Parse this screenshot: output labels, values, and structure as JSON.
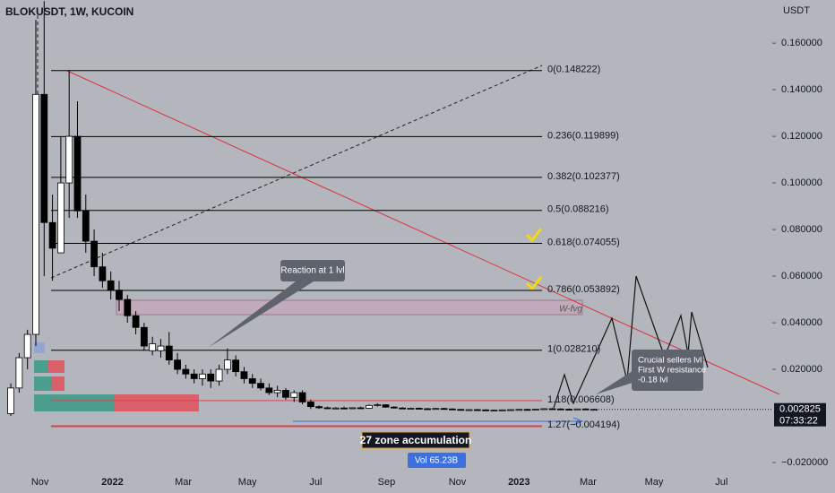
{
  "header": {
    "symbol": "BLOKUSDT, 1W, KUCOIN",
    "currency": "USDT"
  },
  "chart_data": {
    "type": "candlestick",
    "ohlc": [
      [
        0.001,
        0.014,
        0.0,
        0.012
      ],
      [
        0.012,
        0.027,
        0.01,
        0.025
      ],
      [
        0.025,
        0.037,
        0.02,
        0.035
      ],
      [
        0.035,
        0.17,
        0.03,
        0.138
      ],
      [
        0.138,
        0.178,
        0.06,
        0.083
      ],
      [
        0.083,
        0.095,
        0.058,
        0.072
      ],
      [
        0.07,
        0.12,
        0.07,
        0.1
      ],
      [
        0.1,
        0.148,
        0.085,
        0.12
      ],
      [
        0.12,
        0.135,
        0.085,
        0.088
      ],
      [
        0.088,
        0.095,
        0.07,
        0.075
      ],
      [
        0.075,
        0.08,
        0.06,
        0.064
      ],
      [
        0.064,
        0.07,
        0.055,
        0.058
      ],
      [
        0.058,
        0.062,
        0.05,
        0.054
      ],
      [
        0.054,
        0.058,
        0.045,
        0.05
      ],
      [
        0.05,
        0.052,
        0.04,
        0.043
      ],
      [
        0.043,
        0.045,
        0.035,
        0.038
      ],
      [
        0.038,
        0.04,
        0.028,
        0.03
      ],
      [
        0.028,
        0.034,
        0.026,
        0.031
      ],
      [
        0.028,
        0.033,
        0.025,
        0.03
      ],
      [
        0.03,
        0.036,
        0.022,
        0.024
      ],
      [
        0.024,
        0.027,
        0.018,
        0.02
      ],
      [
        0.02,
        0.022,
        0.016,
        0.018
      ],
      [
        0.018,
        0.02,
        0.014,
        0.016
      ],
      [
        0.016,
        0.02,
        0.013,
        0.018
      ],
      [
        0.018,
        0.02,
        0.012,
        0.015
      ],
      [
        0.015,
        0.022,
        0.013,
        0.02
      ],
      [
        0.02,
        0.029,
        0.018,
        0.024
      ],
      [
        0.024,
        0.026,
        0.017,
        0.019
      ],
      [
        0.019,
        0.021,
        0.014,
        0.016
      ],
      [
        0.016,
        0.018,
        0.012,
        0.014
      ],
      [
        0.014,
        0.016,
        0.011,
        0.012
      ],
      [
        0.012,
        0.014,
        0.009,
        0.01
      ],
      [
        0.01,
        0.013,
        0.008,
        0.011
      ],
      [
        0.011,
        0.012,
        0.007,
        0.008
      ],
      [
        0.008,
        0.011,
        0.006,
        0.01
      ],
      [
        0.01,
        0.011,
        0.005,
        0.006
      ],
      [
        0.006,
        0.007,
        0.003,
        0.004
      ],
      [
        0.004,
        0.0045,
        0.003,
        0.0035
      ],
      [
        0.0035,
        0.004,
        0.003,
        0.0033
      ],
      [
        0.0033,
        0.0038,
        0.003,
        0.0034
      ],
      [
        0.0034,
        0.004,
        0.003,
        0.0032
      ],
      [
        0.0032,
        0.0037,
        0.0029,
        0.0035
      ],
      [
        0.0035,
        0.004,
        0.003,
        0.0033
      ],
      [
        0.0033,
        0.005,
        0.003,
        0.0045
      ],
      [
        0.0045,
        0.0055,
        0.004,
        0.0048
      ],
      [
        0.0048,
        0.005,
        0.0035,
        0.0038
      ],
      [
        0.0038,
        0.0042,
        0.0032,
        0.0034
      ],
      [
        0.0034,
        0.0038,
        0.003,
        0.0032
      ],
      [
        0.0032,
        0.0036,
        0.0029,
        0.0033
      ],
      [
        0.0033,
        0.0036,
        0.003,
        0.0031
      ],
      [
        0.0031,
        0.0034,
        0.0028,
        0.003
      ],
      [
        0.003,
        0.0034,
        0.0027,
        0.0032
      ],
      [
        0.0032,
        0.0035,
        0.0029,
        0.003
      ],
      [
        0.003,
        0.0033,
        0.0026,
        0.0028
      ],
      [
        0.0028,
        0.003,
        0.0024,
        0.0025
      ],
      [
        0.0025,
        0.0029,
        0.0023,
        0.0027
      ],
      [
        0.0027,
        0.003,
        0.0024,
        0.0026
      ],
      [
        0.0026,
        0.0029,
        0.0023,
        0.0024
      ],
      [
        0.0024,
        0.0027,
        0.0022,
        0.0025
      ],
      [
        0.0025,
        0.0028,
        0.0023,
        0.0026
      ],
      [
        0.0026,
        0.0029,
        0.0024,
        0.0027
      ],
      [
        0.0027,
        0.003,
        0.0025,
        0.0028
      ],
      [
        0.0028,
        0.0031,
        0.0025,
        0.0026
      ],
      [
        0.0026,
        0.003,
        0.0025,
        0.0029
      ],
      [
        0.0029,
        0.0033,
        0.0027,
        0.0031
      ],
      [
        0.0031,
        0.0034,
        0.0028,
        0.003
      ],
      [
        0.003,
        0.0033,
        0.0027,
        0.0029
      ],
      [
        0.0029,
        0.0032,
        0.0026,
        0.0027
      ],
      [
        0.0027,
        0.0031,
        0.0025,
        0.003
      ],
      [
        0.003,
        0.0033,
        0.0026,
        0.0028
      ],
      [
        0.0028,
        0.0031,
        0.0026,
        0.002825
      ]
    ],
    "up_color": "#ffffff",
    "down_color": "#000000",
    "xlim": [
      -1.3,
      91.4
    ],
    "xticks": [
      {
        "value": 3.5,
        "label": "Nov"
      },
      {
        "value": 12.2,
        "label": "2022"
      },
      {
        "value": 20.7,
        "label": "Mar"
      },
      {
        "value": 28.4,
        "label": "May"
      },
      {
        "value": 36.6,
        "label": "Jul"
      },
      {
        "value": 45.1,
        "label": "Sep"
      },
      {
        "value": 53.6,
        "label": "Nov"
      },
      {
        "value": 61.0,
        "label": "2023"
      },
      {
        "value": 69.3,
        "label": "Mar"
      },
      {
        "value": 77.2,
        "label": "May"
      },
      {
        "value": 85.3,
        "label": "Jul"
      }
    ],
    "ylim": [
      -0.0246,
      0.1785
    ],
    "yticks": [
      {
        "value": 0.16,
        "label": "0.160000"
      },
      {
        "value": 0.14,
        "label": "0.140000"
      },
      {
        "value": 0.12,
        "label": "0.120000"
      },
      {
        "value": 0.1,
        "label": "0.100000"
      },
      {
        "value": 0.08,
        "label": "0.080000"
      },
      {
        "value": 0.06,
        "label": "0.060000"
      },
      {
        "value": 0.04,
        "label": "0.040000"
      },
      {
        "value": 0.02,
        "label": "0.020000"
      },
      {
        "value": -0.02,
        "label": "−0.020000"
      }
    ],
    "fib_levels": [
      {
        "label": "0(0.148222)",
        "value": 0.148222,
        "color": "#000000"
      },
      {
        "label": "0.236(0.119899)",
        "value": 0.119899,
        "color": "#000000"
      },
      {
        "label": "0.382(0.102377)",
        "value": 0.102377,
        "color": "#000000"
      },
      {
        "label": "0.5(0.088216)",
        "value": 0.088216,
        "color": "#000000"
      },
      {
        "label": "0.618(0.074055)",
        "value": 0.074055,
        "color": "#000000"
      },
      {
        "label": "0.786(0.053892)",
        "value": 0.053892,
        "color": "#000000"
      },
      {
        "label": "1(0.028210)",
        "value": 0.02821,
        "color": "#000000"
      },
      {
        "label": "1.18(0.006608)",
        "value": 0.006608,
        "color": "#d9434f"
      },
      {
        "label": "1.27(−0.004194)",
        "value": -0.004194,
        "color": "#d9434f"
      }
    ],
    "annotations": {
      "reaction": "Reaction at 1 lvl",
      "sellers": [
        "Crucial sellers lvl",
        "First W resistance",
        "-0.18 lvl"
      ],
      "zone": "27 zone accumulation",
      "fvg": "W-fvg",
      "volume": "Vol 65.23B"
    },
    "last_price": 0.002825,
    "countdown": "07:33:22"
  }
}
